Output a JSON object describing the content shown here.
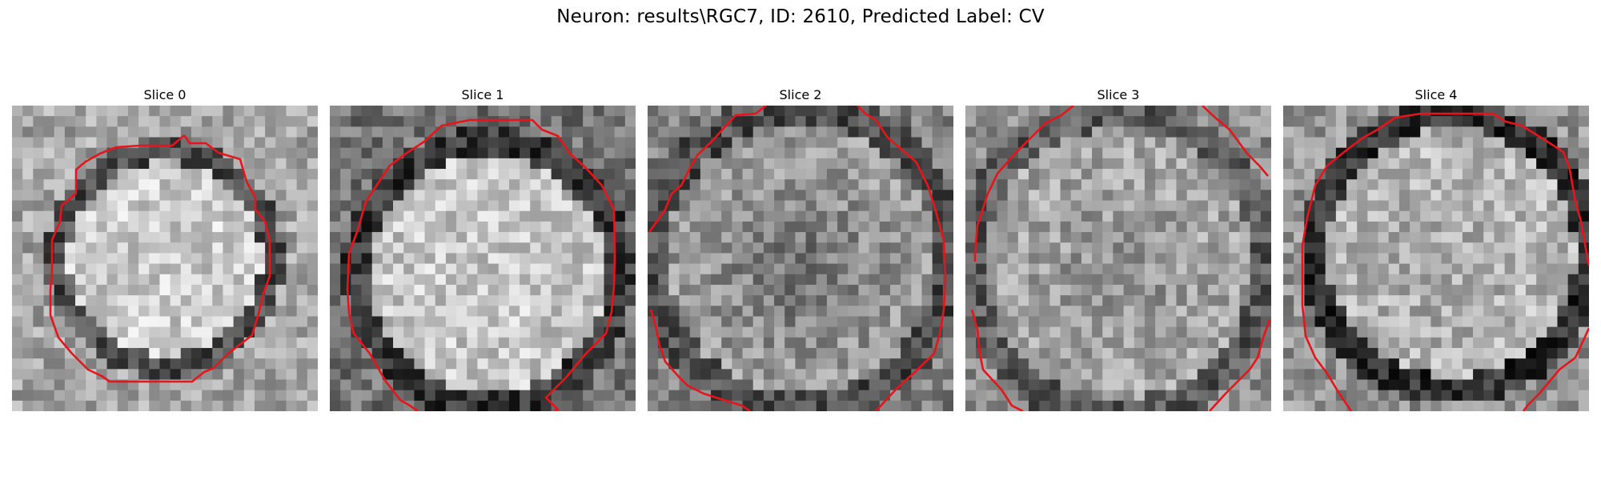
{
  "figure": {
    "title": "Neuron: results\\RGC7, ID: 2610, Predicted Label: CV",
    "contour_color": "#e8141b",
    "colormap": "grayscale"
  },
  "panels": [
    {
      "title": "Slice 0"
    },
    {
      "title": "Slice 1"
    },
    {
      "title": "Slice 2"
    },
    {
      "title": "Slice 3"
    },
    {
      "title": "Slice 4"
    }
  ]
}
